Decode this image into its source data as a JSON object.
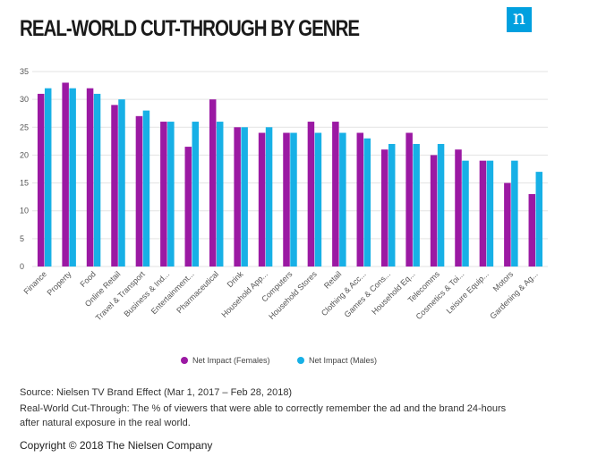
{
  "title": "REAL-WORLD CUT-THROUGH BY GENRE",
  "logo_letter": "n",
  "source": "Source: Nielsen TV Brand Effect (Mar 1, 2017 – Feb 28, 2018)",
  "note_line1": "Real-World Cut-Through: The % of viewers that were able to correctly remember the ad and the brand 24-hours",
  "note_line2": "after natural exposure in the real world.",
  "copyright": "Copyright © 2018 The Nielsen Company",
  "colors": {
    "females": "#9b19a3",
    "males": "#17b0e6",
    "grid": "#e3e3e3"
  },
  "chart_data": {
    "type": "bar",
    "title": "REAL-WORLD CUT-THROUGH BY GENRE",
    "xlabel": "",
    "ylabel": "",
    "ylim": [
      0,
      35
    ],
    "yticks": [
      0,
      5,
      10,
      15,
      20,
      25,
      30,
      35
    ],
    "grid": true,
    "legend_position": "bottom-center",
    "categories": [
      "Finance",
      "Property",
      "Food",
      "Online Retail",
      "Travel & Transport",
      "Business & Ind...",
      "Entertainment...",
      "Pharmaceutical",
      "Drink",
      "Household App...",
      "Computers",
      "Household Stores",
      "Retail",
      "Clothing & Acc...",
      "Games & Cons...",
      "Household Eq...",
      "Telecomms",
      "Cosmetics & Toi...",
      "Leisure Equip...",
      "Motors",
      "Gardening & Ag..."
    ],
    "series": [
      {
        "name": "Net Impact (Females)",
        "values": [
          31,
          33,
          32,
          29,
          27,
          26,
          21.5,
          30,
          25,
          24,
          24,
          26,
          26,
          24,
          21,
          24,
          20,
          21,
          19,
          15,
          13
        ]
      },
      {
        "name": "Net Impact (Males)",
        "values": [
          32,
          32,
          31,
          30,
          28,
          26,
          26,
          26,
          25,
          25,
          24,
          24,
          24,
          23,
          22,
          22,
          22,
          19,
          19,
          19,
          17
        ]
      }
    ]
  }
}
